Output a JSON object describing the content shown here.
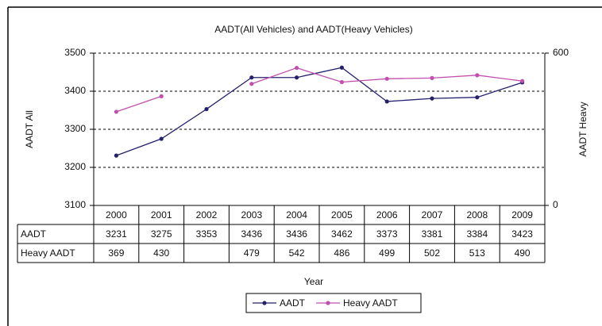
{
  "chart_data": {
    "type": "line",
    "title": "AADT(All Vehicles) and AADT(Heavy Vehicles)",
    "xlabel": "Year",
    "ylabel": "AADT All",
    "y2label": "AADT Heavy",
    "categories": [
      "2000",
      "2001",
      "2002",
      "2003",
      "2004",
      "2005",
      "2006",
      "2007",
      "2008",
      "2009"
    ],
    "series": [
      {
        "name": "AADT",
        "color": "#24206e",
        "values": [
          3231,
          3275,
          3353,
          3436,
          3436,
          3462,
          3373,
          3381,
          3384,
          3423
        ]
      },
      {
        "name": "Heavy AADT",
        "color": "#c24fae",
        "axis": "y2",
        "values": [
          369,
          430,
          null,
          479,
          542,
          486,
          499,
          502,
          513,
          490
        ]
      }
    ],
    "ylim": [
      3100,
      3500
    ],
    "yticks": [
      3100,
      3200,
      3300,
      3400,
      3500
    ],
    "y2lim": [
      0,
      600
    ],
    "y2ticks": [
      0,
      600
    ],
    "grid": true,
    "legend": "bottom"
  }
}
